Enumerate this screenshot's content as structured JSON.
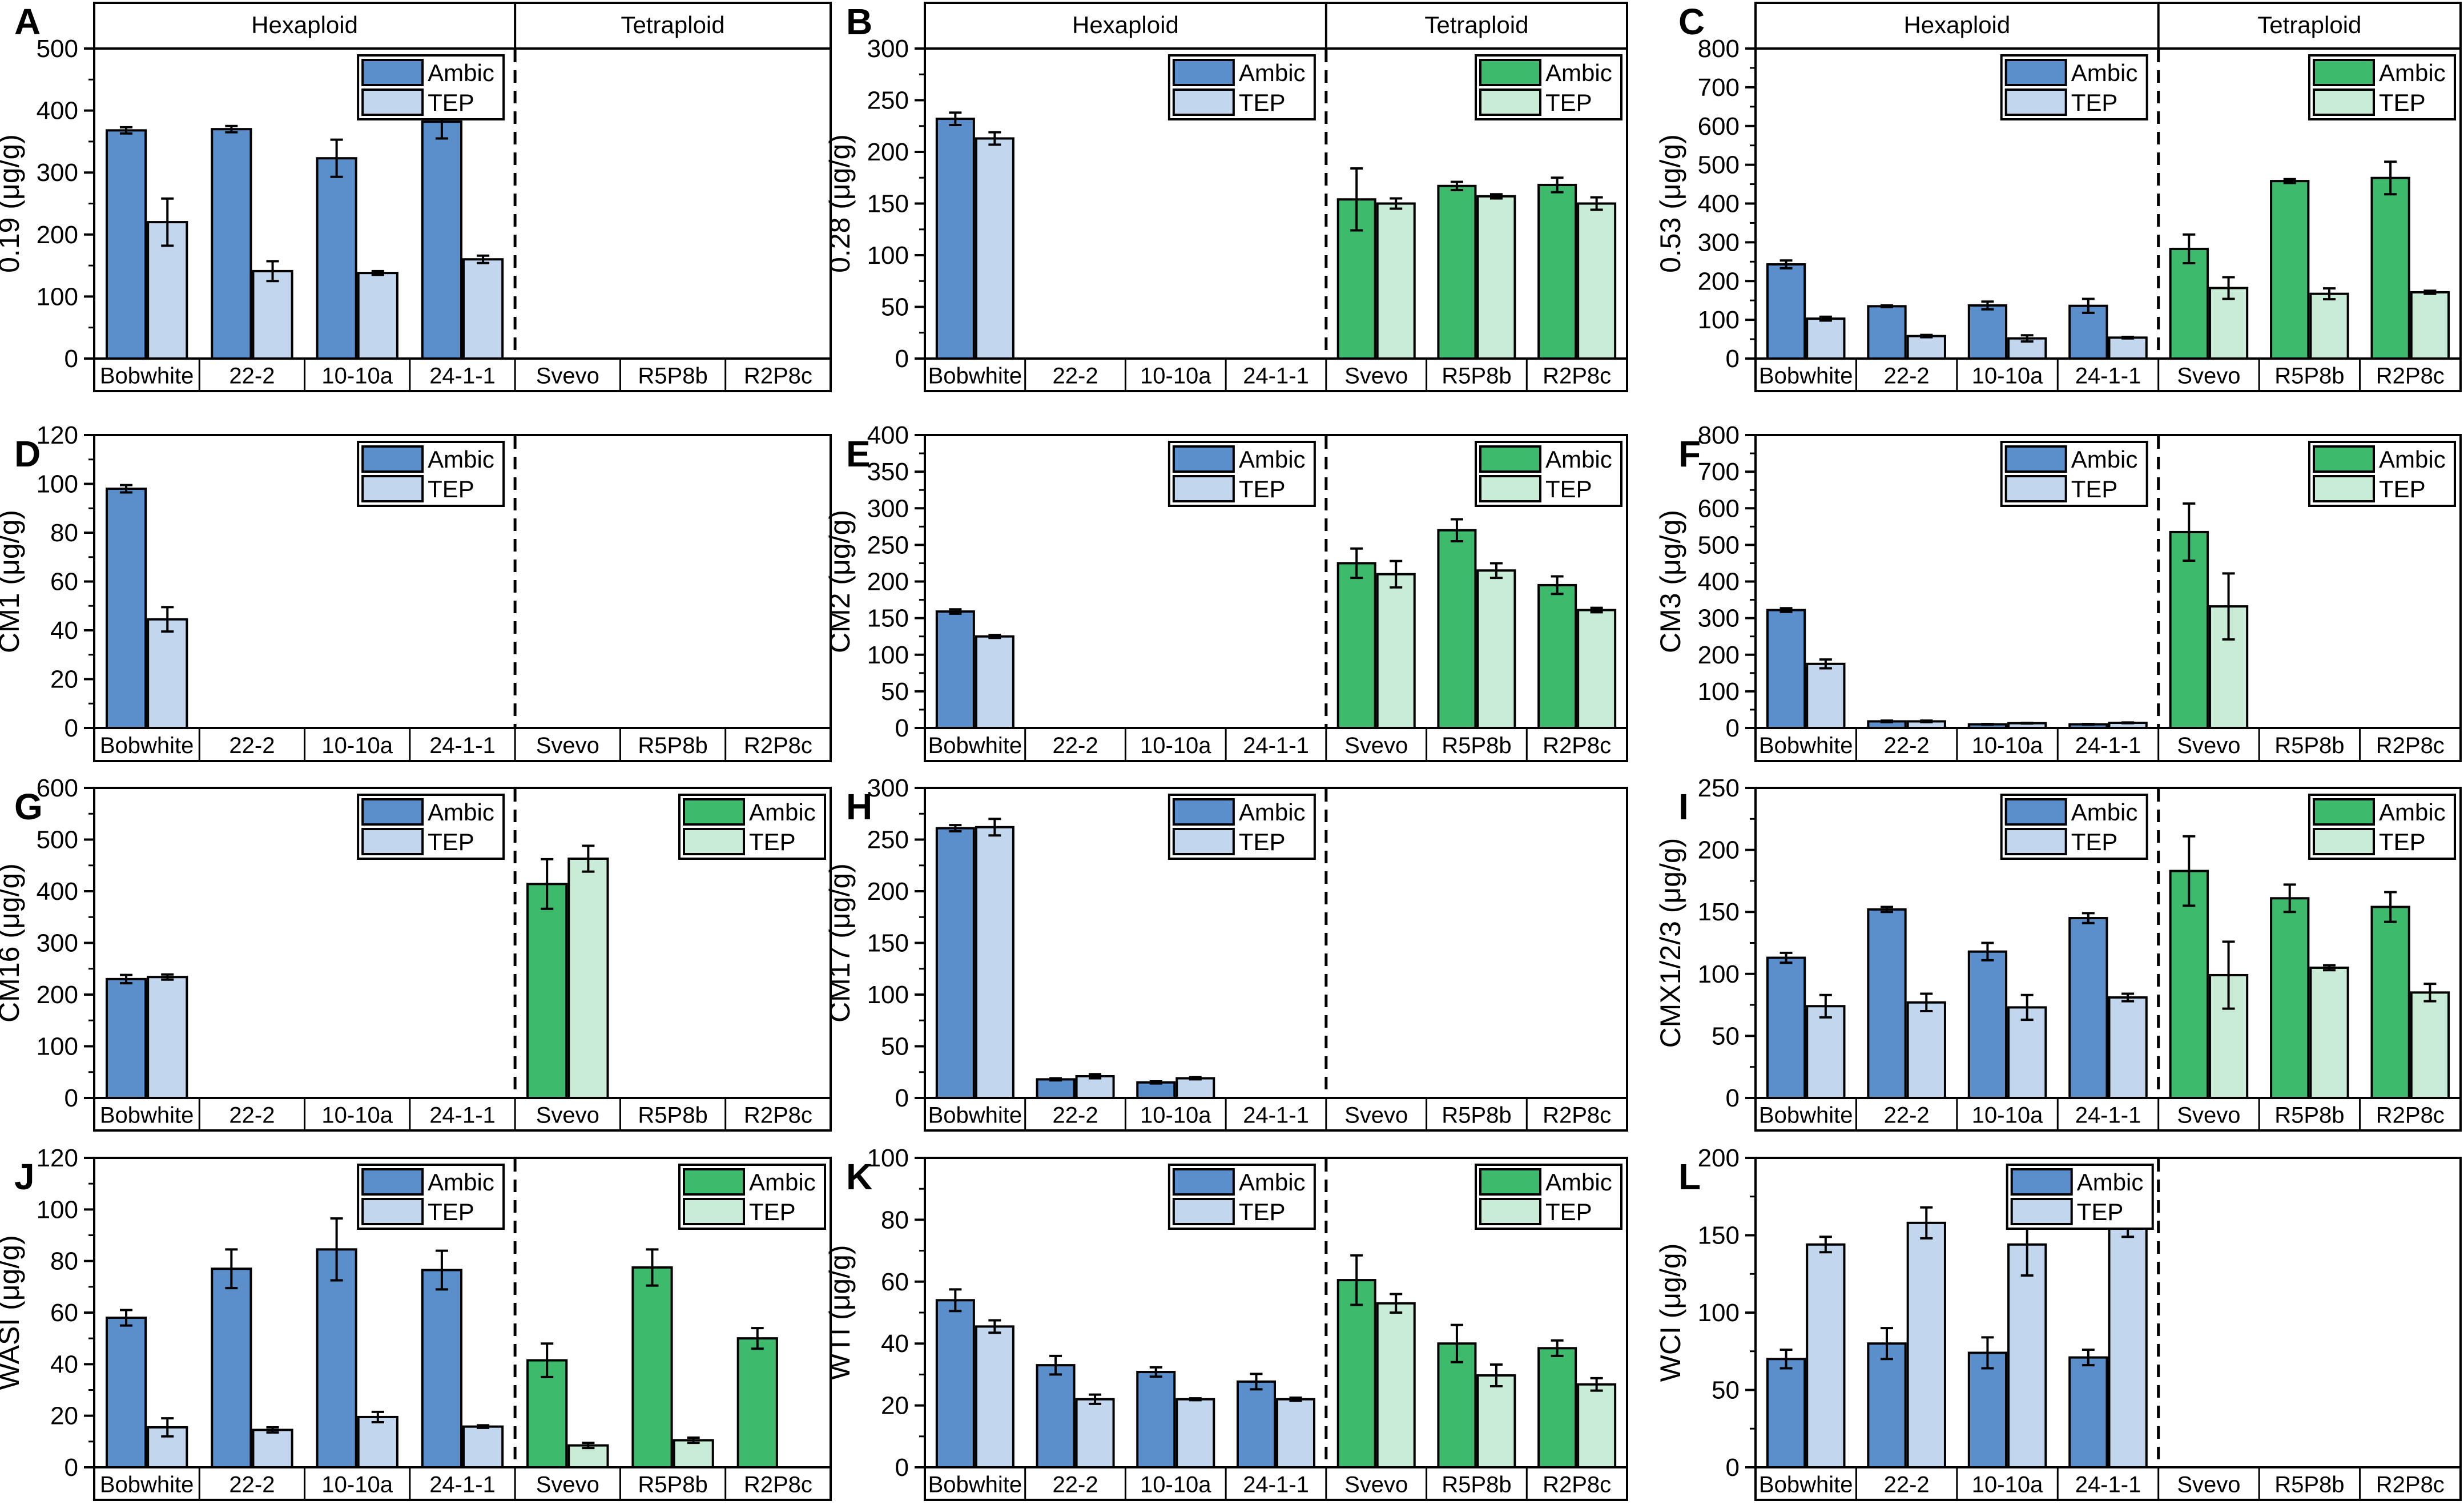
{
  "figure": {
    "series_labels": [
      "Ambic",
      "TEP"
    ],
    "group_headers": [
      "Hexaploid",
      "Tetraploid"
    ],
    "colors": {
      "hexaploid_ambic": "#5b8fcb",
      "hexaploid_tep": "#c2d7ee",
      "tetraploid_ambic": "#3dba6b",
      "tetraploid_tep": "#c9ecd6",
      "axis": "#000000",
      "background": "#ffffff"
    }
  },
  "chart_data": [
    {
      "panel": "A",
      "type": "bar",
      "ylabel": "0.19 (μg/g)",
      "ylim": [
        0,
        500
      ],
      "yticks": [
        0,
        100,
        200,
        300,
        400,
        500
      ],
      "minor_tick": 50,
      "header": true,
      "legend_hex": true,
      "legend_tet": false,
      "categories": [
        "Bobwhite",
        "22-2",
        "10-10a",
        "24-1-1",
        "Svevo",
        "R5P8b",
        "R2P8c"
      ],
      "series": [
        {
          "name": "Ambic",
          "values": [
            368,
            370,
            323,
            382,
            null,
            null,
            null
          ],
          "errors": [
            5,
            5,
            30,
            27,
            null,
            null,
            null
          ]
        },
        {
          "name": "TEP",
          "values": [
            220,
            141,
            138,
            160,
            null,
            null,
            null
          ],
          "errors": [
            38,
            16,
            3,
            6,
            null,
            null,
            null
          ]
        }
      ]
    },
    {
      "panel": "B",
      "type": "bar",
      "ylabel": "0.28 (μg/g)",
      "ylim": [
        0,
        300
      ],
      "yticks": [
        0,
        50,
        100,
        150,
        200,
        250,
        300
      ],
      "minor_tick": 25,
      "header": true,
      "legend_hex": true,
      "legend_tet": true,
      "categories": [
        "Bobwhite",
        "22-2",
        "10-10a",
        "24-1-1",
        "Svevo",
        "R5P8b",
        "R2P8c"
      ],
      "series": [
        {
          "name": "Ambic",
          "values": [
            232,
            null,
            null,
            null,
            154,
            167,
            168
          ],
          "errors": [
            6,
            null,
            null,
            null,
            30,
            4,
            7
          ]
        },
        {
          "name": "TEP",
          "values": [
            213,
            null,
            null,
            null,
            150,
            157,
            150
          ],
          "errors": [
            6,
            null,
            null,
            null,
            5,
            2,
            6
          ]
        }
      ]
    },
    {
      "panel": "C",
      "type": "bar",
      "ylabel": "0.53 (μg/g)",
      "ylim": [
        0,
        800
      ],
      "yticks": [
        0,
        100,
        200,
        300,
        400,
        500,
        600,
        700,
        800
      ],
      "minor_tick": 50,
      "header": true,
      "legend_hex": true,
      "legend_tet": true,
      "categories": [
        "Bobwhite",
        "22-2",
        "10-10a",
        "24-1-1",
        "Svevo",
        "R5P8b",
        "R2P8c"
      ],
      "series": [
        {
          "name": "Ambic",
          "values": [
            243,
            135,
            137,
            136,
            283,
            458,
            466
          ],
          "errors": [
            10,
            2,
            10,
            18,
            37,
            5,
            42
          ]
        },
        {
          "name": "TEP",
          "values": [
            103,
            58,
            52,
            54,
            182,
            167,
            171
          ],
          "errors": [
            5,
            3,
            8,
            2,
            28,
            14,
            4
          ]
        }
      ]
    },
    {
      "panel": "D",
      "type": "bar",
      "ylabel": "CM1 (μg/g)",
      "ylim": [
        0,
        120
      ],
      "yticks": [
        0,
        20,
        40,
        60,
        80,
        100,
        120
      ],
      "minor_tick": 10,
      "header": false,
      "legend_hex": true,
      "legend_tet": false,
      "categories": [
        "Bobwhite",
        "22-2",
        "10-10a",
        "24-1-1",
        "Svevo",
        "R5P8b",
        "R2P8c"
      ],
      "series": [
        {
          "name": "Ambic",
          "values": [
            98,
            null,
            null,
            null,
            null,
            null,
            null
          ],
          "errors": [
            1.5,
            null,
            null,
            null,
            null,
            null,
            null
          ]
        },
        {
          "name": "TEP",
          "values": [
            44.5,
            null,
            null,
            null,
            null,
            null,
            null
          ],
          "errors": [
            5,
            null,
            null,
            null,
            null,
            null,
            null
          ]
        }
      ]
    },
    {
      "panel": "E",
      "type": "bar",
      "ylabel": "CM2 (μg/g)",
      "ylim": [
        0,
        400
      ],
      "yticks": [
        0,
        50,
        100,
        150,
        200,
        250,
        300,
        350,
        400
      ],
      "minor_tick": 25,
      "header": false,
      "legend_hex": true,
      "legend_tet": true,
      "categories": [
        "Bobwhite",
        "22-2",
        "10-10a",
        "24-1-1",
        "Svevo",
        "R5P8b",
        "R2P8c"
      ],
      "series": [
        {
          "name": "Ambic",
          "values": [
            159,
            null,
            null,
            null,
            225,
            270,
            195
          ],
          "errors": [
            3,
            null,
            null,
            null,
            20,
            15,
            12
          ]
        },
        {
          "name": "TEP",
          "values": [
            125,
            null,
            null,
            null,
            210,
            215,
            161
          ],
          "errors": [
            2,
            null,
            null,
            null,
            18,
            10,
            3
          ]
        }
      ]
    },
    {
      "panel": "F",
      "type": "bar",
      "ylabel": "CM3 (μg/g)",
      "ylim": [
        0,
        800
      ],
      "yticks": [
        0,
        100,
        200,
        300,
        400,
        500,
        600,
        700,
        800
      ],
      "minor_tick": 50,
      "header": false,
      "legend_hex": true,
      "legend_tet": true,
      "categories": [
        "Bobwhite",
        "22-2",
        "10-10a",
        "24-1-1",
        "Svevo",
        "R5P8b",
        "R2P8c"
      ],
      "series": [
        {
          "name": "Ambic",
          "values": [
            322,
            18,
            10,
            10,
            535,
            null,
            null
          ],
          "errors": [
            5,
            2,
            1,
            1,
            78,
            null,
            null
          ]
        },
        {
          "name": "TEP",
          "values": [
            175,
            18,
            13,
            14,
            332,
            null,
            null
          ],
          "errors": [
            12,
            2,
            1,
            1,
            90,
            null,
            null
          ]
        }
      ]
    },
    {
      "panel": "G",
      "type": "bar",
      "ylabel": "CM16 (μg/g)",
      "ylim": [
        0,
        600
      ],
      "yticks": [
        0,
        100,
        200,
        300,
        400,
        500,
        600
      ],
      "minor_tick": 50,
      "header": false,
      "legend_hex": true,
      "legend_tet": true,
      "categories": [
        "Bobwhite",
        "22-2",
        "10-10a",
        "24-1-1",
        "Svevo",
        "R5P8b",
        "R2P8c"
      ],
      "series": [
        {
          "name": "Ambic",
          "values": [
            230,
            null,
            null,
            null,
            414,
            null,
            null
          ],
          "errors": [
            8,
            null,
            null,
            null,
            48,
            null,
            null
          ]
        },
        {
          "name": "TEP",
          "values": [
            234,
            null,
            null,
            null,
            463,
            null,
            null
          ],
          "errors": [
            5,
            null,
            null,
            null,
            25,
            null,
            null
          ]
        }
      ]
    },
    {
      "panel": "H",
      "type": "bar",
      "ylabel": "CM17 (μg/g)",
      "ylim": [
        0,
        300
      ],
      "yticks": [
        0,
        50,
        100,
        150,
        200,
        250,
        300
      ],
      "minor_tick": 25,
      "header": false,
      "legend_hex": true,
      "legend_tet": false,
      "categories": [
        "Bobwhite",
        "22-2",
        "10-10a",
        "24-1-1",
        "Svevo",
        "R5P8b",
        "R2P8c"
      ],
      "series": [
        {
          "name": "Ambic",
          "values": [
            261,
            18,
            15,
            null,
            null,
            null,
            null
          ],
          "errors": [
            3,
            1,
            1,
            null,
            null,
            null,
            null
          ]
        },
        {
          "name": "TEP",
          "values": [
            262,
            21,
            19,
            null,
            null,
            null,
            null
          ],
          "errors": [
            8,
            2,
            1,
            null,
            null,
            null,
            null
          ]
        }
      ]
    },
    {
      "panel": "I",
      "type": "bar",
      "ylabel": "CMX1/2/3 (μg/g)",
      "ylim": [
        0,
        250
      ],
      "yticks": [
        0,
        50,
        100,
        150,
        200,
        250
      ],
      "minor_tick": 25,
      "header": false,
      "legend_hex": true,
      "legend_tet": true,
      "categories": [
        "Bobwhite",
        "22-2",
        "10-10a",
        "24-1-1",
        "Svevo",
        "R5P8b",
        "R2P8c"
      ],
      "series": [
        {
          "name": "Ambic",
          "values": [
            113,
            152,
            118,
            145,
            183,
            161,
            154
          ],
          "errors": [
            4,
            2,
            7,
            4,
            28,
            11,
            12
          ]
        },
        {
          "name": "TEP",
          "values": [
            74,
            77,
            73,
            81,
            99,
            105,
            85
          ],
          "errors": [
            9,
            7,
            10,
            3,
            27,
            2,
            7
          ]
        }
      ]
    },
    {
      "panel": "J",
      "type": "bar",
      "ylabel": "WASI (μg/g)",
      "ylim": [
        0,
        120
      ],
      "yticks": [
        0,
        20,
        40,
        60,
        80,
        100,
        120
      ],
      "minor_tick": 10,
      "header": false,
      "legend_hex": true,
      "legend_tet": true,
      "categories": [
        "Bobwhite",
        "22-2",
        "10-10a",
        "24-1-1",
        "Svevo",
        "R5P8b",
        "R2P8c"
      ],
      "series": [
        {
          "name": "Ambic",
          "values": [
            58,
            77,
            84.5,
            76.5,
            41.5,
            77.5,
            50
          ],
          "errors": [
            3,
            7.5,
            12,
            7.5,
            6.5,
            7,
            4
          ]
        },
        {
          "name": "TEP",
          "values": [
            15.5,
            14.5,
            19.5,
            15.8,
            8.5,
            10.5,
            null
          ],
          "errors": [
            3.5,
            1,
            2,
            0.5,
            1,
            1,
            null
          ]
        }
      ]
    },
    {
      "panel": "K",
      "type": "bar",
      "ylabel": "WTI (μg/g)",
      "ylim": [
        0,
        100
      ],
      "yticks": [
        0,
        20,
        40,
        60,
        80,
        100
      ],
      "minor_tick": 10,
      "header": false,
      "legend_hex": true,
      "legend_tet": true,
      "categories": [
        "Bobwhite",
        "22-2",
        "10-10a",
        "24-1-1",
        "Svevo",
        "R5P8b",
        "R2P8c"
      ],
      "series": [
        {
          "name": "Ambic",
          "values": [
            54,
            33,
            30.8,
            27.7,
            60.5,
            40,
            38.5
          ],
          "errors": [
            3.5,
            3,
            1.5,
            2.5,
            8,
            6,
            2.5
          ]
        },
        {
          "name": "TEP",
          "values": [
            45.5,
            22,
            22,
            22,
            53,
            29.7,
            26.8
          ],
          "errors": [
            2,
            1.5,
            0.3,
            0.5,
            3,
            3.5,
            2
          ]
        }
      ]
    },
    {
      "panel": "L",
      "type": "bar",
      "ylabel": "WCI (μg/g)",
      "ylim": [
        0,
        200
      ],
      "yticks": [
        0,
        50,
        100,
        150,
        200
      ],
      "minor_tick": 25,
      "header": false,
      "legend_hex": true,
      "legend_tet": false,
      "legend_offset": true,
      "categories": [
        "Bobwhite",
        "22-2",
        "10-10a",
        "24-1-1",
        "Svevo",
        "R5P8b",
        "R2P8c"
      ],
      "series": [
        {
          "name": "Ambic",
          "values": [
            70,
            80,
            74,
            71,
            null,
            null,
            null
          ],
          "errors": [
            6,
            10,
            10,
            5,
            null,
            null,
            null
          ]
        },
        {
          "name": "TEP",
          "values": [
            144,
            158,
            144,
            159,
            null,
            null,
            null
          ],
          "errors": [
            5,
            10,
            20,
            10,
            null,
            null,
            null
          ]
        }
      ]
    }
  ]
}
